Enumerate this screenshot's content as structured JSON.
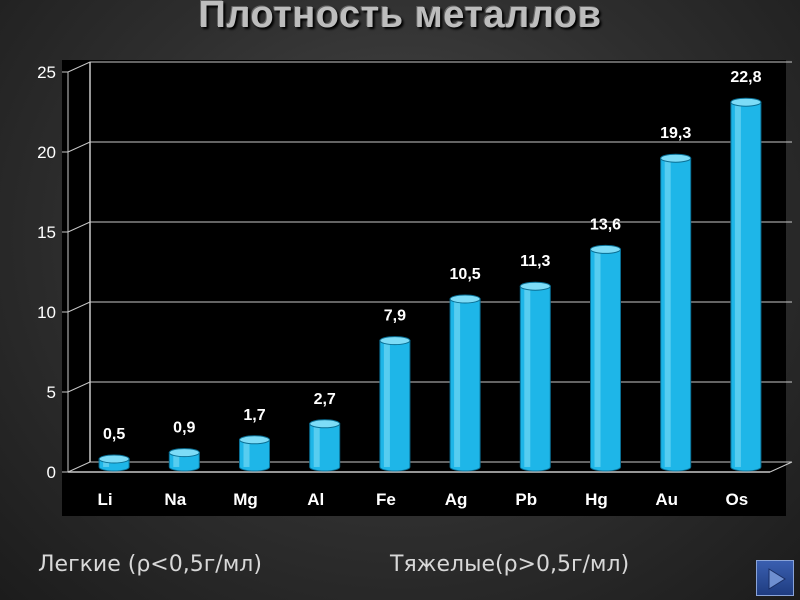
{
  "slide": {
    "title": "Плотность металлов",
    "caption_light": "Легкие (ρ<0,5г/мл)",
    "caption_heavy": "Тяжелые(ρ>0,5г/мл)",
    "nav_icon": "play-right-icon"
  },
  "chart_data": {
    "type": "bar",
    "title": "Плотность металлов",
    "categories": [
      "Li",
      "Na",
      "Mg",
      "Al",
      "Fe",
      "Ag",
      "Pb",
      "Hg",
      "Au",
      "Os"
    ],
    "values": [
      0.5,
      0.9,
      1.7,
      2.7,
      7.9,
      10.5,
      11.3,
      13.6,
      19.3,
      22.8
    ],
    "data_labels": [
      "0,5",
      "0,9",
      "1,7",
      "2,7",
      "7,9",
      "10,5",
      "11,3",
      "13,6",
      "19,3",
      "22,8"
    ],
    "yticks": [
      "0",
      "5",
      "10",
      "15",
      "20",
      "25"
    ],
    "ylim": [
      0,
      25
    ],
    "grid": true,
    "legend": "none",
    "bar_color": "#1eb6e8",
    "bar_top_color": "#7ddcf7",
    "plot_background": "#000000",
    "text_color": "#ffffff"
  }
}
